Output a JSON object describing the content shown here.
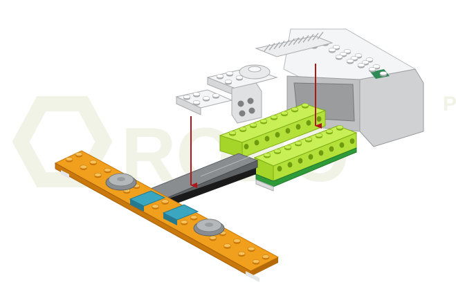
{
  "watermark": {
    "text": "ROBO",
    "suffix": "P",
    "color": "#f1f3e6"
  },
  "colors": {
    "orange": "#f0a01c",
    "orange_dark": "#c9780c",
    "orange_light": "#f7c15a",
    "lime": "#a6d52a",
    "lime_dark": "#7fae15",
    "lime_light": "#c8ef55",
    "green_base": "#2f9a3a",
    "gray_beam": "#8a8d90",
    "gray_beam_dark": "#5e6164",
    "gray_beam_light": "#b5b8ba",
    "teal": "#3aa6c0",
    "teal_light": "#6fc7dc",
    "light_gray": "#e3e5e7",
    "light_gray_mid": "#c9cbcd",
    "light_gray_dark": "#a9abad",
    "white_part": "#f4f5f6",
    "hub_body": "#cfd1d3",
    "hub_dark": "#8f9193",
    "screen": "#2f8a55",
    "arrow": "#b0151b",
    "black": "#1a1a1a"
  },
  "arrows": [
    {
      "name": "left-placement-arrow"
    },
    {
      "name": "right-placement-arrow"
    }
  ]
}
